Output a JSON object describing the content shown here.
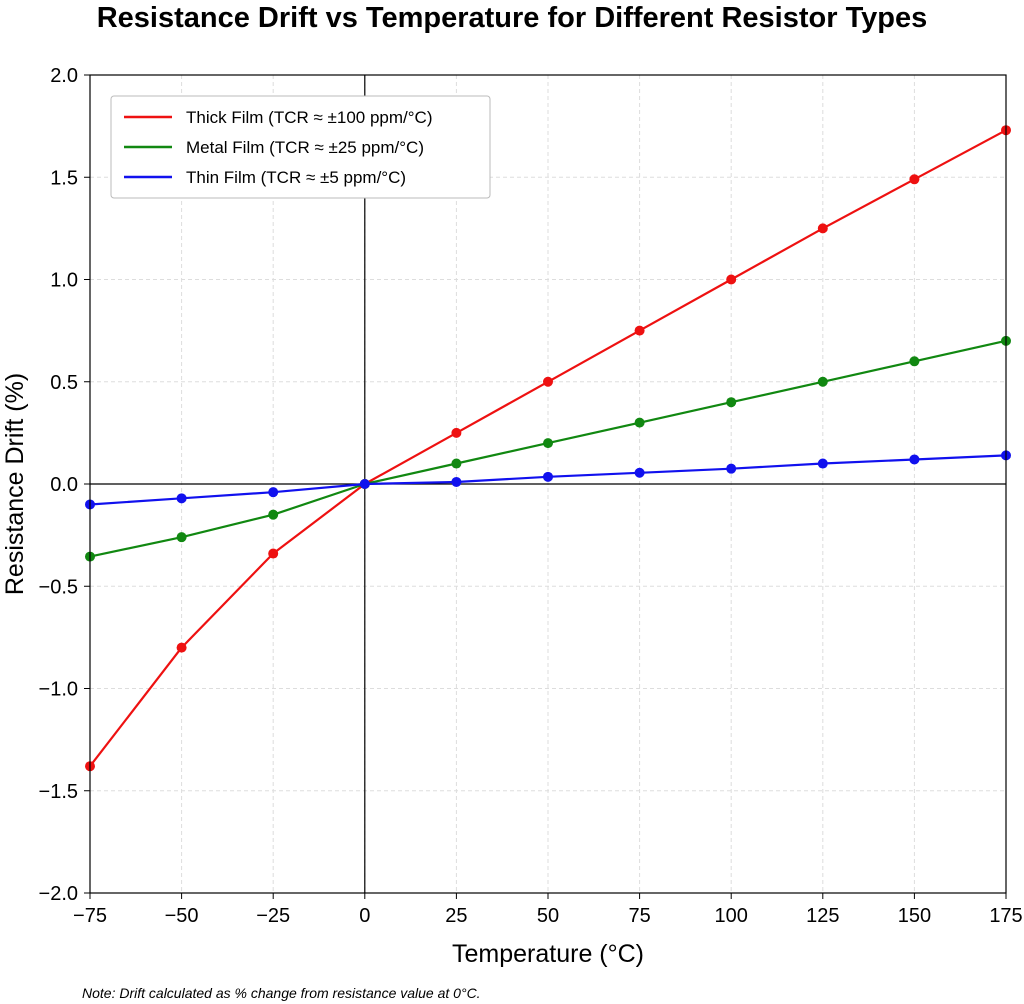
{
  "chart_data": {
    "type": "line",
    "title": "Resistance Drift vs Temperature for Different Resistor Types",
    "xlabel": "Temperature (°C)",
    "ylabel": "Resistance Drift (%)",
    "xlim": [
      -75,
      175
    ],
    "ylim": [
      -2.0,
      2.0
    ],
    "x": [
      -75,
      -50,
      -25,
      0,
      25,
      50,
      75,
      100,
      125,
      150,
      175
    ],
    "xticks": [
      -75,
      -50,
      -25,
      0,
      25,
      50,
      75,
      100,
      125,
      150,
      175
    ],
    "xtick_labels": [
      "−75",
      "−50",
      "−25",
      "0",
      "25",
      "50",
      "75",
      "100",
      "125",
      "150",
      "175"
    ],
    "yticks": [
      -2.0,
      -1.5,
      -1.0,
      -0.5,
      0.0,
      0.5,
      1.0,
      1.5,
      2.0
    ],
    "ytick_labels": [
      "−2.0",
      "−1.5",
      "−1.0",
      "−0.5",
      "0.0",
      "0.5",
      "1.0",
      "1.5",
      "2.0"
    ],
    "grid": true,
    "legend_position": "top-left",
    "series": [
      {
        "name": "Thick Film (TCR ≈ ±100 ppm/°C)",
        "color": "#ee1111",
        "values": [
          -1.38,
          -0.8,
          -0.34,
          0.0,
          0.25,
          0.5,
          0.75,
          1.0,
          1.25,
          1.49,
          1.73
        ]
      },
      {
        "name": "Metal Film (TCR ≈ ±25 ppm/°C)",
        "color": "#118811",
        "values": [
          -0.355,
          -0.26,
          -0.15,
          0.0,
          0.1,
          0.2,
          0.3,
          0.4,
          0.5,
          0.6,
          0.7
        ]
      },
      {
        "name": "Thin Film (TCR ≈ ±5 ppm/°C)",
        "color": "#1111ee",
        "values": [
          -0.1,
          -0.07,
          -0.04,
          0.0,
          0.01,
          0.035,
          0.055,
          0.075,
          0.1,
          0.12,
          0.14
        ]
      }
    ],
    "note": "Note: Drift calculated as % change from resistance value at 0°C."
  }
}
